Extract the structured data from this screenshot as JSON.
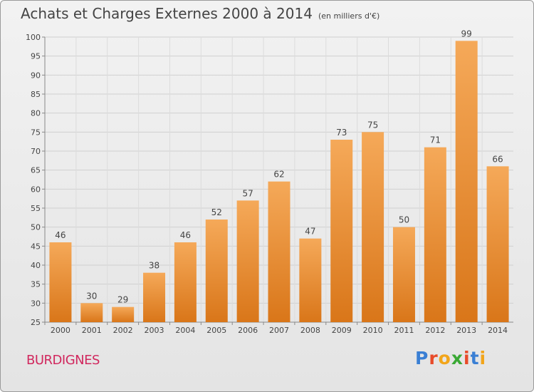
{
  "title": "Achats et Charges Externes 2000 à 2014",
  "unit": "(en milliers d'€)",
  "commune": "BURDIGNES",
  "logo": {
    "letters": [
      "P",
      "r",
      "o",
      "x",
      "i",
      "t",
      "i"
    ],
    "colors": [
      "#3a7fd4",
      "#e84b2a",
      "#f2a51a",
      "#3aa935",
      "#e84b2a",
      "#3a7fd4",
      "#f2a51a"
    ]
  },
  "colors": {
    "bar_top": "#f5a959",
    "bar_bottom": "#d97619",
    "commune": "#d1285e",
    "title": "#444444"
  },
  "chart_data": {
    "type": "bar",
    "title": "Achats et Charges Externes 2000 à 2014",
    "subtitle": "(en milliers d'€)",
    "xlabel": "",
    "ylabel": "",
    "categories": [
      "2000",
      "2001",
      "2002",
      "2003",
      "2004",
      "2005",
      "2006",
      "2007",
      "2008",
      "2009",
      "2010",
      "2011",
      "2012",
      "2013",
      "2014"
    ],
    "values": [
      46,
      30,
      29,
      38,
      46,
      52,
      57,
      62,
      47,
      73,
      75,
      50,
      71,
      99,
      66
    ],
    "ylim": [
      25,
      100
    ],
    "yticks": [
      25,
      30,
      35,
      40,
      45,
      50,
      55,
      60,
      65,
      70,
      75,
      80,
      85,
      90,
      95,
      100
    ],
    "grid": true,
    "legend": "none",
    "data_labels": true
  }
}
